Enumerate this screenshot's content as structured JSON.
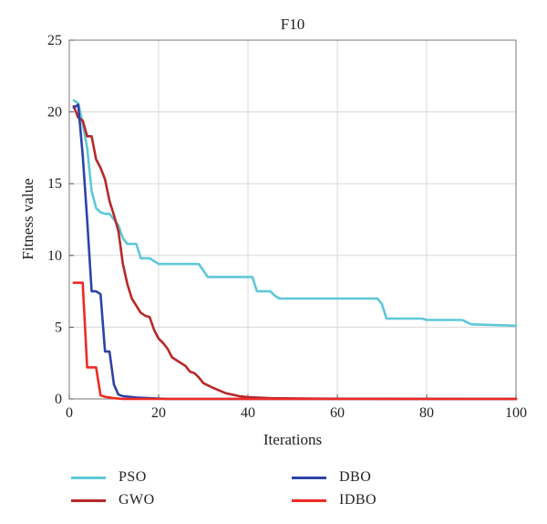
{
  "chart_data": {
    "type": "line",
    "title": "F10",
    "xlabel": "Iterations",
    "ylabel": "Fitness value",
    "xlim": [
      0,
      100
    ],
    "ylim": [
      0,
      25
    ],
    "xticks": [
      0,
      20,
      40,
      60,
      80,
      100
    ],
    "yticks": [
      0,
      5,
      10,
      15,
      20,
      25
    ],
    "grid": true,
    "legend_position": "bottom",
    "series": [
      {
        "name": "PSO",
        "color": "#5ec8d8",
        "points": [
          [
            1,
            20.8
          ],
          [
            2,
            20.6
          ],
          [
            3,
            19.2
          ],
          [
            4,
            17.5
          ],
          [
            5,
            14.5
          ],
          [
            6,
            13.3
          ],
          [
            7,
            13.0
          ],
          [
            8,
            12.9
          ],
          [
            9,
            12.9
          ],
          [
            10,
            12.5
          ],
          [
            11,
            12.1
          ],
          [
            12,
            11.2
          ],
          [
            13,
            10.8
          ],
          [
            15,
            10.8
          ],
          [
            16,
            9.8
          ],
          [
            18,
            9.8
          ],
          [
            20,
            9.4
          ],
          [
            29,
            9.4
          ],
          [
            31,
            8.5
          ],
          [
            41,
            8.5
          ],
          [
            42,
            7.5
          ],
          [
            45,
            7.5
          ],
          [
            46,
            7.2
          ],
          [
            47,
            7.0
          ],
          [
            69,
            7.0
          ],
          [
            70,
            6.6
          ],
          [
            71,
            5.6
          ],
          [
            79,
            5.6
          ],
          [
            80,
            5.5
          ],
          [
            88,
            5.5
          ],
          [
            90,
            5.2
          ],
          [
            100,
            5.1
          ]
        ]
      },
      {
        "name": "GWO",
        "color": "#b82828",
        "points": [
          [
            1,
            20.4
          ],
          [
            2,
            19.6
          ],
          [
            3,
            19.4
          ],
          [
            4,
            18.3
          ],
          [
            5,
            18.3
          ],
          [
            6,
            16.7
          ],
          [
            7,
            16.1
          ],
          [
            8,
            15.3
          ],
          [
            9,
            13.8
          ],
          [
            10,
            12.8
          ],
          [
            11,
            11.7
          ],
          [
            12,
            9.4
          ],
          [
            13,
            8.0
          ],
          [
            14,
            7.0
          ],
          [
            15,
            6.5
          ],
          [
            16,
            6.0
          ],
          [
            17,
            5.8
          ],
          [
            18,
            5.7
          ],
          [
            19,
            4.8
          ],
          [
            20,
            4.2
          ],
          [
            21,
            3.9
          ],
          [
            22,
            3.5
          ],
          [
            23,
            2.9
          ],
          [
            24,
            2.7
          ],
          [
            25,
            2.5
          ],
          [
            26,
            2.3
          ],
          [
            27,
            1.9
          ],
          [
            28,
            1.8
          ],
          [
            29,
            1.5
          ],
          [
            30,
            1.1
          ],
          [
            32,
            0.8
          ],
          [
            35,
            0.4
          ],
          [
            38,
            0.2
          ],
          [
            40,
            0.12
          ],
          [
            45,
            0.05
          ],
          [
            55,
            0.02
          ],
          [
            70,
            0.01
          ],
          [
            100,
            0.0
          ]
        ]
      },
      {
        "name": "DBO",
        "color": "#2e43a6",
        "points": [
          [
            1,
            20.3
          ],
          [
            2,
            20.5
          ],
          [
            3,
            17.0
          ],
          [
            4,
            12.5
          ],
          [
            5,
            7.5
          ],
          [
            6,
            7.5
          ],
          [
            7,
            7.3
          ],
          [
            8,
            3.3
          ],
          [
            9,
            3.3
          ],
          [
            10,
            1.0
          ],
          [
            11,
            0.3
          ],
          [
            12,
            0.2
          ],
          [
            15,
            0.1
          ],
          [
            18,
            0.05
          ],
          [
            22,
            0.0
          ],
          [
            100,
            0.0
          ]
        ]
      },
      {
        "name": "IDBO",
        "color": "#ee2a24",
        "points": [
          [
            1,
            8.1
          ],
          [
            3,
            8.1
          ],
          [
            4,
            2.2
          ],
          [
            6,
            2.2
          ],
          [
            7,
            0.25
          ],
          [
            8,
            0.15
          ],
          [
            10,
            0.05
          ],
          [
            12,
            0.0
          ],
          [
            100,
            0.0
          ]
        ]
      }
    ]
  }
}
